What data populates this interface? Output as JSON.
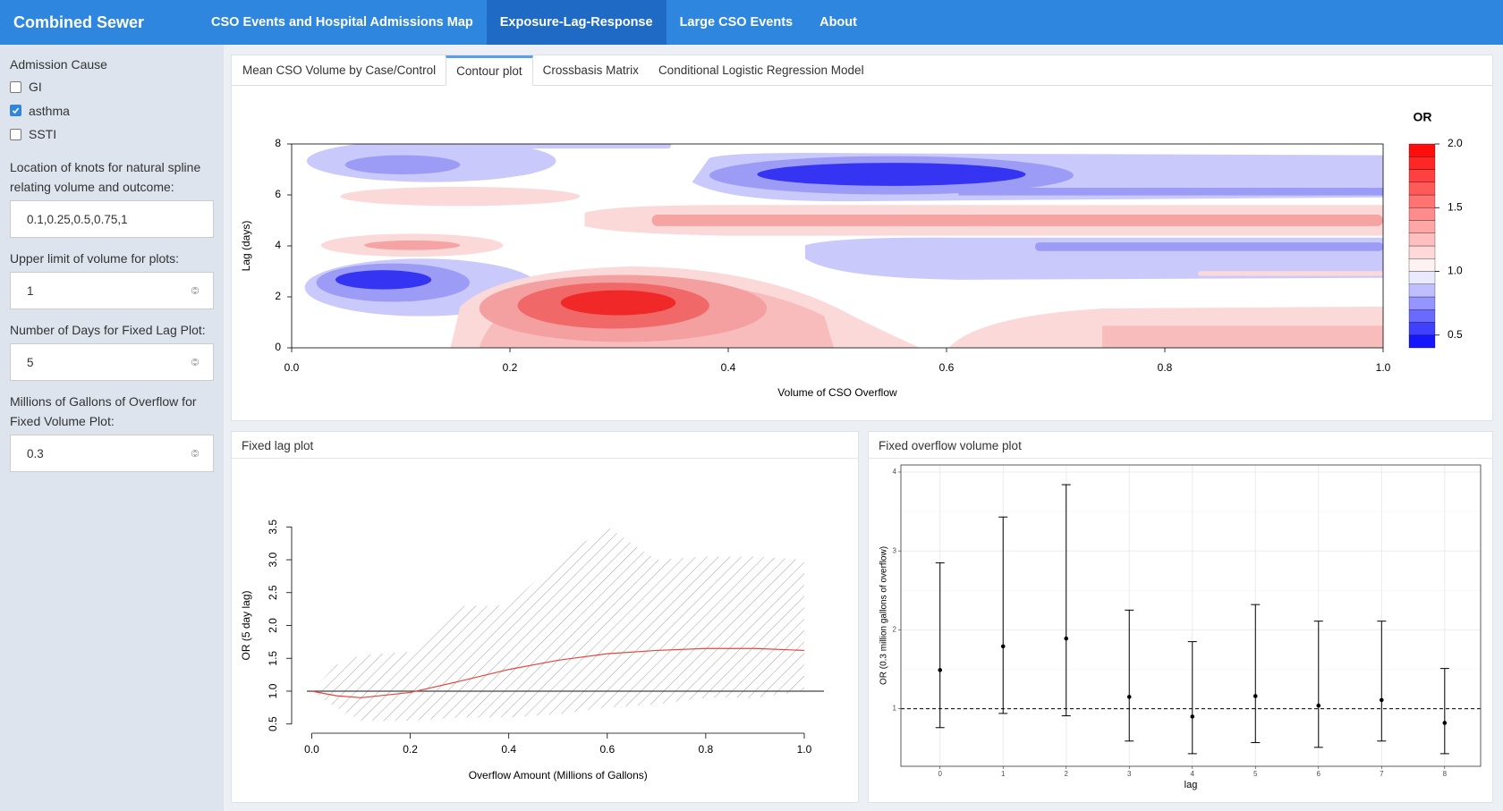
{
  "navbar": {
    "brand": "Combined Sewer Overflow",
    "tabs": [
      "CSO Events and Hospital Admissions Map",
      "Exposure-Lag-Response",
      "Large CSO Events",
      "About"
    ],
    "active_tab": 1
  },
  "sidebar": {
    "cause_label": "Admission Cause",
    "causes": [
      {
        "label": "GI",
        "checked": false
      },
      {
        "label": "asthma",
        "checked": true
      },
      {
        "label": "SSTI",
        "checked": false
      }
    ],
    "inputs": [
      {
        "label": "Location of knots for natural spline relating volume and outcome:",
        "value": "0.1,0.25,0.5,0.75,1"
      },
      {
        "label": "Upper limit of volume for plots:",
        "value": 1
      },
      {
        "label": "Number of Days for Fixed Lag Plot:",
        "value": 5
      },
      {
        "label": "Millions of Gallons of Overflow for Fixed Volume Plot:",
        "value": 0.3
      }
    ]
  },
  "tabs": {
    "items": [
      "Mean CSO Volume by Case/Control",
      "Contour plot",
      "Crossbasis Matrix",
      "Conditional Logistic Regression Model"
    ],
    "active": 1
  },
  "chart_data": [
    {
      "type": "contour",
      "xlabel": "Volume of CSO Overflow",
      "ylabel": "Lag (days)",
      "xlim": [
        0,
        1
      ],
      "xticks": [
        {
          "value": 0,
          "label": "0.0"
        },
        0.2,
        0.4,
        0.6,
        0.8,
        {
          "value": 1,
          "label": "1.0"
        }
      ],
      "ylim": [
        0,
        8
      ],
      "yticks": [
        0,
        2,
        4,
        6,
        8
      ],
      "legend_title": "OR",
      "zlim": [
        0.4,
        2.0
      ],
      "zticks": [
        0.5,
        {
          "value": 1,
          "label": "1.0"
        },
        1.5,
        {
          "value": 2,
          "label": "2.0"
        }
      ],
      "colors": [
        "#0000ff",
        "#ffffff",
        "#ff0000"
      ]
    },
    {
      "type": "line",
      "title": "Fixed lag plot",
      "xlabel": "Overflow Amount (Millions of Gallons)",
      "ylabel": "OR (5 day lag)",
      "xlim": [
        -0.01,
        1.04
      ],
      "xticks": [
        {
          "value": 0,
          "label": "0.0"
        },
        0.2,
        0.4,
        0.6,
        0.8,
        {
          "value": 1,
          "label": "1.0"
        }
      ],
      "ylim": [
        0.36,
        3.64
      ],
      "yticks": [
        0.5,
        {
          "value": 1,
          "label": "1.0"
        },
        1.5,
        {
          "value": 2,
          "label": "2.0"
        },
        2.5,
        {
          "value": 3,
          "label": "3.0"
        },
        3.5
      ],
      "x": [
        0,
        0.05,
        0.1,
        0.2,
        0.3,
        0.4,
        0.5,
        0.6,
        0.7,
        0.8,
        0.9,
        1
      ],
      "values": [
        1.0,
        0.93,
        0.9,
        0.98,
        1.15,
        1.33,
        1.47,
        1.57,
        1.62,
        1.65,
        1.65,
        1.62
      ],
      "lower": [
        1.0,
        0.75,
        0.55,
        0.55,
        0.6,
        0.6,
        0.65,
        0.75,
        0.8,
        0.9,
        0.9,
        1.0
      ],
      "upper": [
        1.0,
        1.4,
        1.55,
        1.6,
        2.3,
        2.3,
        3.0,
        3.5,
        3.0,
        3.05,
        3.05,
        3.0
      ],
      "reference": 1,
      "color": "#e8453c"
    },
    {
      "type": "errorbar",
      "title": "Fixed overflow volume plot",
      "xlabel": "lag",
      "ylabel": "OR (0.3 million gallons of overflow)",
      "xlim": [
        -0.62,
        8.57
      ],
      "xticks": [
        0,
        1,
        2,
        3,
        4,
        5,
        6,
        7,
        8
      ],
      "ylim": [
        0.27,
        4.09
      ],
      "yticks": [
        1,
        2,
        3,
        4
      ],
      "x": [
        0,
        1,
        2,
        3,
        4,
        5,
        6,
        7,
        8
      ],
      "values": [
        1.49,
        1.79,
        1.89,
        1.15,
        0.9,
        1.16,
        1.04,
        1.11,
        0.82
      ],
      "lower": [
        0.76,
        0.94,
        0.91,
        0.59,
        0.43,
        0.57,
        0.51,
        0.59,
        0.43
      ],
      "upper": [
        2.85,
        3.43,
        3.84,
        2.25,
        1.85,
        2.32,
        2.11,
        2.11,
        1.51
      ],
      "reference": 1,
      "grid": true,
      "color": "#000000"
    }
  ]
}
